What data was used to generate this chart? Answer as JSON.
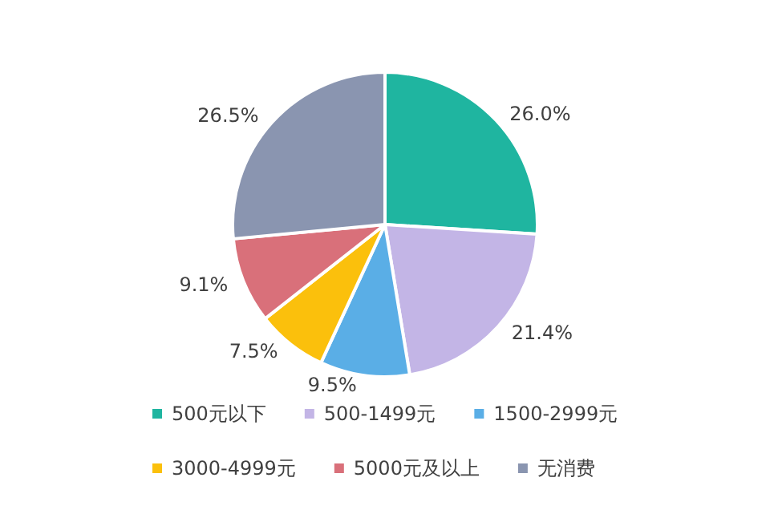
{
  "chart_data": {
    "type": "pie",
    "categories": [
      "500元以下",
      "500-1499元",
      "1500-2999元",
      "3000-4999元",
      "5000元及以上",
      "无消费"
    ],
    "values": [
      26.0,
      21.4,
      9.5,
      7.5,
      9.1,
      26.5
    ],
    "colors": [
      "#1fb5a0",
      "#c3b5e6",
      "#5aaee6",
      "#fbc00c",
      "#d9707a",
      "#8a95b0"
    ],
    "value_labels": [
      "26.0%",
      "21.4%",
      "9.5%",
      "7.5%",
      "9.1%",
      "26.5%"
    ],
    "legend": "bottom"
  }
}
